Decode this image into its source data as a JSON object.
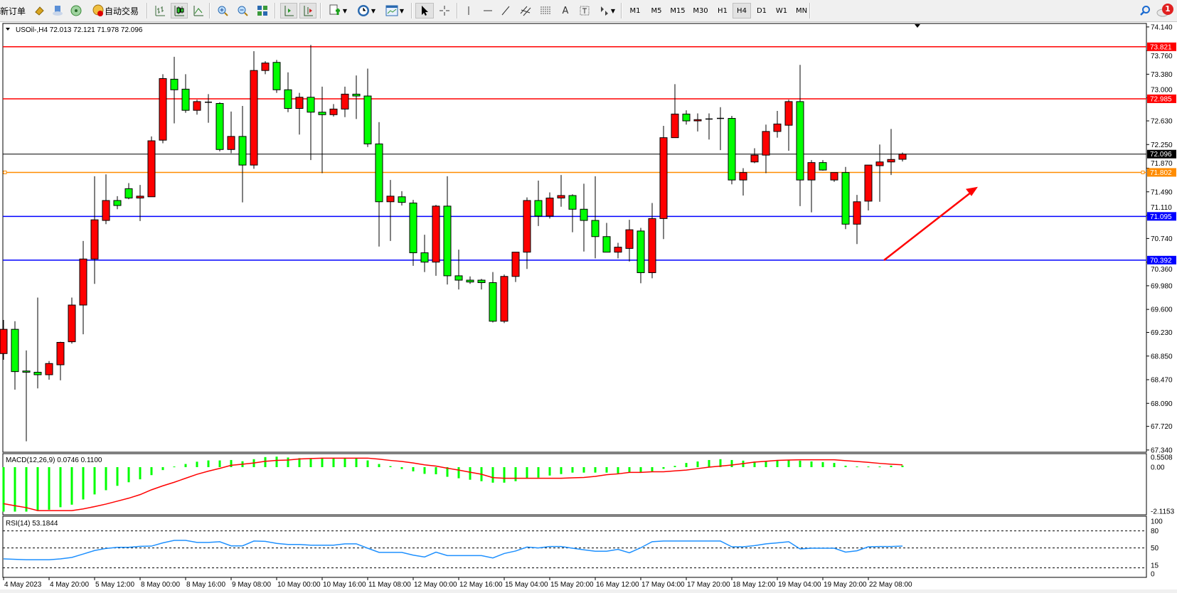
{
  "toolbar": {
    "new_order_label": "新订单",
    "auto_trade_label": "自动交易",
    "timeframes": [
      "M1",
      "M5",
      "M15",
      "M30",
      "H1",
      "H4",
      "D1",
      "W1",
      "MN"
    ],
    "active_timeframe": "H4",
    "notification_count": "1",
    "icons": [
      "gold-icon",
      "cloud-icon",
      "signal-icon",
      "auto-trade-icon",
      "bar-chart-icon",
      "candlestick-icon",
      "line-chart-icon",
      "zoom-in-icon",
      "zoom-out-icon",
      "tile-windows-icon",
      "chart-shift-icon",
      "auto-scroll-icon",
      "indicators-icon",
      "periods-clock-icon",
      "templates-icon",
      "cursor-icon",
      "crosshair-icon",
      "vertical-line-icon",
      "horizontal-line-icon",
      "trendline-icon",
      "channel-icon",
      "fibonacci-icon",
      "text-icon",
      "text-label-icon",
      "shapes-icon",
      "search-icon",
      "chat-icon"
    ]
  },
  "chart": {
    "header": "USOil-,H4  72.013 72.121 71.978 72.096",
    "symbol": "USOil-",
    "timeframe": "H4",
    "ohlc_current": {
      "open": 72.013,
      "high": 72.121,
      "low": 71.978,
      "close": 72.096
    },
    "colors": {
      "bull": "#ff0000",
      "bear": "#00ff00",
      "outline": "#000000",
      "macd_hist": "#00ff00",
      "macd_signal": "#ff0000",
      "rsi": "#1e90ff"
    },
    "price_axis": [
      "74.140",
      "73.760",
      "73.380",
      "73.000",
      "72.630",
      "72.250",
      "71.870",
      "71.490",
      "71.110",
      "70.740",
      "70.360",
      "69.980",
      "69.600",
      "69.230",
      "68.850",
      "68.470",
      "68.090",
      "67.720",
      "67.340"
    ],
    "levels": [
      {
        "price": "73.821",
        "color": "#ff0000"
      },
      {
        "price": "72.985",
        "color": "#ff0000"
      },
      {
        "price": "72.096",
        "color": "#000000"
      },
      {
        "price": "71.802",
        "color": "#ff8c00"
      },
      {
        "price": "71.095",
        "color": "#0000ff"
      },
      {
        "price": "70.392",
        "color": "#0000ff"
      }
    ],
    "arrow_annotation": {
      "color": "#ff0000",
      "direction": "up-right",
      "from_price": 70.39,
      "to_price": 71.57
    }
  },
  "chart_data": {
    "type": "candlestick",
    "ohlc": [
      [
        68.89,
        69.43,
        68.79,
        69.28
      ],
      [
        69.28,
        69.41,
        68.31,
        68.6
      ],
      [
        68.61,
        68.94,
        67.48,
        68.59
      ],
      [
        68.59,
        69.79,
        68.33,
        68.55
      ],
      [
        68.55,
        68.77,
        68.47,
        68.73
      ],
      [
        68.71,
        69.08,
        68.46,
        69.07
      ],
      [
        69.08,
        69.79,
        69.05,
        69.67
      ],
      [
        69.67,
        70.7,
        69.2,
        70.41
      ],
      [
        70.41,
        71.74,
        70.01,
        71.04
      ],
      [
        71.03,
        71.77,
        70.97,
        71.35
      ],
      [
        71.35,
        71.42,
        71.21,
        71.27
      ],
      [
        71.54,
        71.63,
        71.37,
        71.39
      ],
      [
        71.39,
        71.6,
        71.02,
        71.42
      ],
      [
        71.41,
        72.38,
        71.41,
        72.31
      ],
      [
        72.32,
        73.38,
        72.27,
        73.31
      ],
      [
        73.3,
        73.66,
        72.59,
        73.13
      ],
      [
        73.14,
        73.38,
        72.76,
        72.8
      ],
      [
        72.8,
        72.97,
        72.73,
        72.94
      ],
      [
        72.92,
        73.06,
        72.6,
        72.93
      ],
      [
        72.91,
        72.93,
        72.14,
        72.17
      ],
      [
        72.17,
        72.78,
        72.11,
        72.38
      ],
      [
        72.38,
        72.87,
        71.32,
        71.92
      ],
      [
        71.92,
        73.75,
        71.86,
        73.44
      ],
      [
        73.44,
        73.59,
        73.38,
        73.56
      ],
      [
        73.57,
        73.61,
        73.08,
        73.13
      ],
      [
        73.13,
        73.41,
        72.77,
        72.83
      ],
      [
        72.83,
        73.08,
        72.41,
        73.01
      ],
      [
        73.01,
        73.85,
        72.0,
        72.77
      ],
      [
        72.77,
        73.18,
        71.79,
        72.73
      ],
      [
        72.73,
        72.9,
        72.7,
        72.82
      ],
      [
        72.82,
        73.18,
        72.69,
        73.06
      ],
      [
        73.06,
        73.36,
        72.66,
        73.03
      ],
      [
        73.03,
        73.47,
        72.21,
        72.26
      ],
      [
        72.26,
        72.61,
        70.61,
        71.33
      ],
      [
        71.33,
        71.68,
        70.7,
        71.42
      ],
      [
        71.41,
        71.5,
        71.27,
        71.32
      ],
      [
        71.31,
        71.36,
        70.3,
        70.51
      ],
      [
        70.51,
        70.8,
        70.2,
        70.36
      ],
      [
        70.36,
        71.28,
        70.14,
        71.26
      ],
      [
        71.26,
        71.74,
        70.0,
        70.14
      ],
      [
        70.14,
        70.56,
        69.92,
        70.07
      ],
      [
        70.07,
        70.13,
        70.01,
        70.04
      ],
      [
        70.07,
        70.09,
        69.92,
        70.03
      ],
      [
        70.03,
        70.2,
        69.39,
        69.41
      ],
      [
        69.41,
        70.16,
        69.38,
        70.13
      ],
      [
        70.13,
        70.52,
        70.04,
        70.52
      ],
      [
        70.52,
        71.4,
        70.25,
        71.35
      ],
      [
        71.35,
        71.67,
        70.94,
        71.1
      ],
      [
        71.1,
        71.48,
        71.06,
        71.39
      ],
      [
        71.39,
        71.76,
        71.25,
        71.43
      ],
      [
        71.43,
        71.45,
        70.84,
        71.21
      ],
      [
        71.21,
        71.62,
        70.53,
        71.03
      ],
      [
        71.03,
        71.74,
        70.42,
        70.77
      ],
      [
        70.77,
        70.99,
        70.52,
        70.52
      ],
      [
        70.52,
        70.67,
        70.42,
        70.6
      ],
      [
        70.58,
        71.04,
        70.37,
        70.88
      ],
      [
        70.86,
        70.91,
        70.02,
        70.19
      ],
      [
        70.19,
        71.31,
        70.1,
        71.06
      ],
      [
        71.06,
        72.55,
        70.73,
        72.36
      ],
      [
        72.36,
        73.22,
        72.36,
        72.74
      ],
      [
        72.74,
        72.8,
        72.57,
        72.63
      ],
      [
        72.63,
        72.75,
        72.46,
        72.65
      ],
      [
        72.66,
        72.75,
        72.33,
        72.66
      ],
      [
        72.67,
        72.85,
        72.16,
        72.66
      ],
      [
        72.67,
        72.71,
        71.61,
        71.68
      ],
      [
        71.68,
        71.87,
        71.43,
        71.8
      ],
      [
        71.97,
        72.19,
        71.95,
        72.08
      ],
      [
        72.08,
        72.57,
        71.79,
        72.46
      ],
      [
        72.46,
        72.79,
        72.36,
        72.58
      ],
      [
        72.56,
        72.97,
        72.15,
        72.94
      ],
      [
        72.94,
        73.53,
        71.26,
        71.68
      ],
      [
        71.68,
        72.0,
        71.16,
        71.96
      ],
      [
        71.96,
        72.0,
        71.83,
        71.84
      ],
      [
        71.68,
        71.8,
        71.65,
        71.8
      ],
      [
        71.8,
        71.89,
        70.89,
        70.97
      ],
      [
        70.97,
        71.44,
        70.65,
        71.33
      ],
      [
        71.34,
        71.92,
        71.19,
        71.92
      ],
      [
        71.91,
        72.25,
        71.33,
        71.97
      ],
      [
        71.97,
        72.5,
        71.76,
        72.01
      ],
      [
        72.013,
        72.121,
        71.978,
        72.096
      ]
    ],
    "ylim": [
      67.34,
      74.14
    ],
    "x_ticks": [
      {
        "candle": 0,
        "label": "4 May 2023"
      },
      {
        "candle": 4,
        "label": "4 May 20:00"
      },
      {
        "candle": 8,
        "label": "5 May 12:00"
      },
      {
        "candle": 12,
        "label": "8 May 00:00"
      },
      {
        "candle": 16,
        "label": "8 May 16:00"
      },
      {
        "candle": 20,
        "label": "9 May 08:00"
      },
      {
        "candle": 24,
        "label": "10 May 00:00"
      },
      {
        "candle": 28,
        "label": "10 May 16:00"
      },
      {
        "candle": 32,
        "label": "11 May 08:00"
      },
      {
        "candle": 36,
        "label": "12 May 00:00"
      },
      {
        "candle": 40,
        "label": "12 May 16:00"
      },
      {
        "candle": 44,
        "label": "15 May 04:00"
      },
      {
        "candle": 48,
        "label": "15 May 20:00"
      },
      {
        "candle": 52,
        "label": "16 May 12:00"
      },
      {
        "candle": 56,
        "label": "17 May 04:00"
      },
      {
        "candle": 60,
        "label": "17 May 20:00"
      },
      {
        "candle": 64,
        "label": "18 May 12:00"
      },
      {
        "candle": 68,
        "label": "19 May 04:00"
      },
      {
        "candle": 72,
        "label": "19 May 20:00"
      },
      {
        "candle": 76,
        "label": "22 May 08:00"
      }
    ],
    "macd": {
      "label": "MACD(12,26,9) 0.0746 0.1100",
      "axis": [
        "0.5508",
        "0.00",
        "-2.1153"
      ],
      "ylim": [
        -2.1153,
        0.5508
      ],
      "histogram": [
        -2.12,
        -2.12,
        -2.12,
        -2.07,
        -2.03,
        -1.91,
        -1.79,
        -1.54,
        -1.3,
        -1.1,
        -0.89,
        -0.72,
        -0.58,
        -0.38,
        -0.14,
        0.03,
        0.15,
        0.26,
        0.32,
        0.32,
        0.34,
        0.28,
        0.38,
        0.48,
        0.5,
        0.46,
        0.43,
        0.41,
        0.41,
        0.43,
        0.43,
        0.41,
        0.32,
        0.15,
        0.05,
        -0.09,
        -0.2,
        -0.32,
        -0.34,
        -0.46,
        -0.53,
        -0.6,
        -0.67,
        -0.74,
        -0.74,
        -0.67,
        -0.55,
        -0.5,
        -0.4,
        -0.33,
        -0.26,
        -0.26,
        -0.26,
        -0.26,
        -0.3,
        -0.26,
        -0.26,
        -0.22,
        -0.08,
        0.06,
        0.2,
        0.27,
        0.34,
        0.38,
        0.34,
        0.31,
        0.27,
        0.27,
        0.31,
        0.34,
        0.31,
        0.27,
        0.24,
        0.2,
        0.07,
        0.03,
        0.03,
        0.03,
        0.07,
        0.0746
      ],
      "signal": [
        -1.74,
        -1.84,
        -1.93,
        -2.07,
        -2.07,
        -2.07,
        -2.07,
        -1.99,
        -1.88,
        -1.76,
        -1.62,
        -1.48,
        -1.31,
        -1.08,
        -0.89,
        -0.72,
        -0.53,
        -0.34,
        -0.19,
        -0.06,
        0.09,
        0.14,
        0.2,
        0.28,
        0.32,
        0.34,
        0.39,
        0.41,
        0.43,
        0.43,
        0.43,
        0.43,
        0.43,
        0.38,
        0.32,
        0.27,
        0.2,
        0.11,
        0.05,
        -0.05,
        -0.14,
        -0.24,
        -0.34,
        -0.5,
        -0.53,
        -0.53,
        -0.53,
        -0.53,
        -0.53,
        -0.53,
        -0.51,
        -0.49,
        -0.44,
        -0.36,
        -0.32,
        -0.25,
        -0.25,
        -0.22,
        -0.22,
        -0.18,
        -0.14,
        -0.07,
        0.0,
        0.05,
        0.1,
        0.17,
        0.24,
        0.28,
        0.32,
        0.34,
        0.35,
        0.35,
        0.35,
        0.35,
        0.31,
        0.27,
        0.23,
        0.18,
        0.14,
        0.11
      ]
    },
    "rsi": {
      "label": "RSI(14) 53.1844",
      "axis": [
        "100",
        "80",
        "50",
        "15",
        "0"
      ],
      "levels": [
        80,
        50,
        15
      ],
      "ylim": [
        0,
        100
      ],
      "values": [
        30.8,
        30.0,
        29.2,
        29.2,
        29.2,
        30.8,
        33.3,
        39.3,
        45.4,
        49.1,
        51.1,
        51.1,
        52.8,
        53.2,
        58.9,
        63.3,
        63.3,
        59.7,
        59.7,
        60.9,
        53.6,
        53.6,
        62.1,
        61.5,
        58.0,
        56.0,
        56.0,
        54.8,
        54.8,
        54.8,
        57.2,
        57.2,
        49.5,
        42.2,
        42.2,
        42.2,
        37.3,
        34.1,
        42.6,
        36.5,
        36.5,
        36.5,
        36.5,
        32.4,
        40.2,
        44.6,
        51.5,
        49.9,
        52.4,
        52.4,
        49.5,
        46.7,
        44.2,
        44.2,
        47.5,
        41.4,
        50.3,
        60.9,
        62.1,
        62.1,
        62.1,
        62.1,
        62.1,
        62.1,
        52.0,
        52.0,
        54.0,
        57.2,
        58.9,
        60.9,
        48.3,
        49.5,
        49.5,
        49.5,
        42.6,
        45.0,
        52.0,
        52.4,
        52.4,
        53.18
      ]
    }
  }
}
